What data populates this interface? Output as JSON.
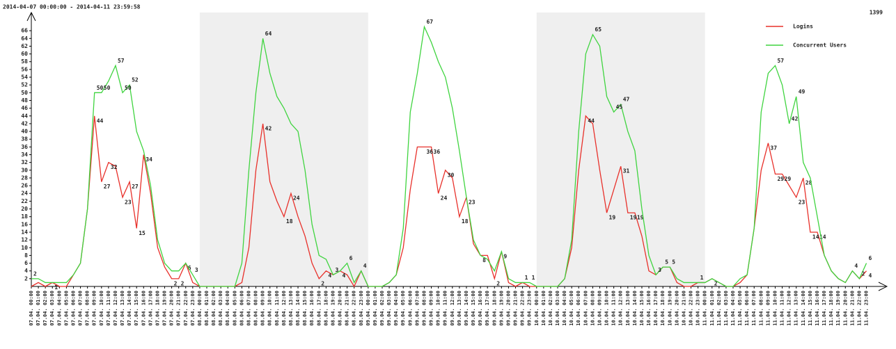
{
  "chart_data": {
    "type": "line",
    "title": "2014-04-07 00:00:00 - 2014-04-11 23:59:58",
    "annotation": "1399",
    "categories": [
      "07.04. 00:00",
      "07.04. 01:00",
      "07.04. 02:00",
      "07.04. 03:00",
      "07.04. 04:00",
      "07.04. 05:00",
      "07.04. 06:00",
      "07.04. 07:00",
      "07.04. 08:00",
      "07.04. 09:00",
      "07.04. 10:00",
      "07.04. 11:00",
      "07.04. 12:00",
      "07.04. 13:00",
      "07.04. 14:00",
      "07.04. 15:00",
      "07.04. 16:00",
      "07.04. 17:00",
      "07.04. 18:00",
      "07.04. 19:00",
      "07.04. 20:00",
      "07.04. 21:00",
      "07.04. 22:00",
      "07.04. 23:00",
      "08.04. 00:00",
      "08.04. 01:00",
      "08.04. 02:00",
      "08.04. 03:00",
      "08.04. 04:00",
      "08.04. 05:00",
      "08.04. 06:00",
      "08.04. 07:00",
      "08.04. 08:00",
      "08.04. 09:00",
      "08.04. 10:00",
      "08.04. 11:00",
      "08.04. 12:00",
      "08.04. 13:00",
      "08.04. 14:00",
      "08.04. 15:00",
      "08.04. 16:00",
      "08.04. 17:00",
      "08.04. 18:00",
      "08.04. 19:00",
      "08.04. 20:00",
      "08.04. 21:00",
      "08.04. 22:00",
      "08.04. 23:00",
      "09.04. 00:00",
      "09.04. 01:00",
      "09.04. 02:00",
      "09.04. 03:00",
      "09.04. 04:00",
      "09.04. 05:00",
      "09.04. 06:00",
      "09.04. 07:00",
      "09.04. 08:00",
      "09.04. 09:00",
      "09.04. 10:00",
      "09.04. 11:00",
      "09.04. 12:00",
      "09.04. 13:00",
      "09.04. 14:00",
      "09.04. 15:00",
      "09.04. 16:00",
      "09.04. 17:00",
      "09.04. 18:00",
      "09.04. 19:00",
      "09.04. 20:00",
      "09.04. 21:00",
      "09.04. 22:00",
      "09.04. 23:00",
      "10.04. 00:00",
      "10.04. 01:00",
      "10.04. 02:00",
      "10.04. 03:00",
      "10.04. 04:00",
      "10.04. 05:00",
      "10.04. 06:00",
      "10.04. 07:00",
      "10.04. 08:00",
      "10.04. 09:00",
      "10.04. 10:00",
      "10.04. 11:00",
      "10.04. 12:00",
      "10.04. 13:00",
      "10.04. 14:00",
      "10.04. 15:00",
      "10.04. 16:00",
      "10.04. 17:00",
      "10.04. 18:00",
      "10.04. 19:00",
      "10.04. 20:00",
      "10.04. 21:00",
      "10.04. 22:00",
      "10.04. 23:00",
      "11.04. 00:00",
      "11.04. 01:00",
      "11.04. 02:00",
      "11.04. 03:00",
      "11.04. 04:00",
      "11.04. 05:00",
      "11.04. 06:00",
      "11.04. 07:00",
      "11.04. 08:00",
      "11.04. 09:00",
      "11.04. 10:00",
      "11.04. 11:00",
      "11.04. 12:00",
      "11.04. 13:00",
      "11.04. 14:00",
      "11.04. 15:00",
      "11.04. 16:00",
      "11.04. 17:00",
      "11.04. 18:00",
      "11.04. 19:00",
      "11.04. 20:00",
      "11.04. 21:00",
      "11.04. 22:00",
      "11.04. 23:00"
    ],
    "series": [
      {
        "name": "Logins",
        "color": "#e8302a",
        "label_color": "#8b0000",
        "values": [
          0,
          1,
          0,
          1,
          0,
          0,
          3,
          6,
          20,
          44,
          27,
          32,
          31,
          23,
          27,
          15,
          34,
          24,
          10,
          5,
          2,
          2,
          6,
          1,
          0,
          0,
          0,
          0,
          0,
          0,
          1,
          10,
          30,
          42,
          27,
          22,
          18,
          24,
          18,
          13,
          6,
          2,
          4,
          3,
          4,
          3,
          0,
          4,
          0,
          0,
          0,
          1,
          3,
          10,
          25,
          36,
          36,
          36,
          24,
          30,
          28,
          18,
          23,
          11,
          8,
          8,
          2,
          9,
          1,
          0,
          1,
          0,
          0,
          0,
          0,
          0,
          2,
          10,
          30,
          44,
          42,
          30,
          19,
          25,
          31,
          19,
          19,
          13,
          4,
          3,
          5,
          5,
          1,
          0,
          0,
          1,
          1,
          2,
          1,
          0,
          0,
          1,
          3,
          15,
          30,
          37,
          29,
          29,
          26,
          23,
          28,
          14,
          14,
          8,
          4,
          2,
          1,
          4,
          2,
          4
        ],
        "value_labels": [
          null,
          null,
          null,
          "1",
          null,
          null,
          null,
          null,
          null,
          "44",
          "27",
          "32",
          null,
          "23",
          "27",
          "15",
          "34",
          null,
          null,
          null,
          "2",
          "2",
          "6",
          null,
          null,
          null,
          null,
          null,
          null,
          null,
          null,
          null,
          null,
          "42",
          null,
          null,
          "18",
          "24",
          null,
          null,
          null,
          "2",
          "4",
          null,
          "4",
          null,
          null,
          null,
          null,
          null,
          null,
          null,
          null,
          null,
          null,
          null,
          "36",
          "36",
          "24",
          "30",
          null,
          "18",
          "23",
          null,
          "8",
          null,
          "2",
          "9",
          null,
          null,
          null,
          null,
          null,
          null,
          null,
          null,
          null,
          null,
          null,
          "44",
          null,
          null,
          "19",
          null,
          "31",
          "19",
          "19",
          null,
          null,
          null,
          null,
          null,
          null,
          null,
          null,
          null,
          null,
          "2",
          null,
          null,
          null,
          null,
          null,
          null,
          null,
          "37",
          "29",
          "29",
          null,
          "23",
          "28",
          "14",
          "14",
          null,
          null,
          null,
          null,
          null,
          null,
          "4"
        ]
      },
      {
        "name": "Concurrent Users",
        "color": "#3fd43f",
        "label_color": "#1f6e1f",
        "values": [
          2,
          2,
          1,
          1,
          1,
          1,
          3,
          6,
          20,
          50,
          50,
          53,
          57,
          50,
          52,
          40,
          35,
          26,
          12,
          6,
          4,
          4,
          6,
          3,
          0,
          0,
          0,
          0,
          0,
          0,
          6,
          30,
          50,
          64,
          55,
          49,
          46,
          42,
          40,
          30,
          16,
          8,
          7,
          3,
          4,
          6,
          1,
          4,
          0,
          0,
          0,
          1,
          3,
          15,
          45,
          55,
          67,
          63,
          58,
          54,
          46,
          35,
          23,
          12,
          8,
          7,
          4,
          9,
          2,
          1,
          1,
          1,
          0,
          0,
          0,
          0,
          2,
          12,
          40,
          60,
          65,
          62,
          49,
          45,
          47,
          40,
          35,
          20,
          8,
          3,
          5,
          5,
          2,
          1,
          1,
          1,
          1,
          2,
          1,
          0,
          0,
          2,
          3,
          15,
          45,
          55,
          57,
          52,
          42,
          49,
          32,
          28,
          18,
          8,
          4,
          2,
          1,
          4,
          2,
          6
        ],
        "value_labels": [
          "2",
          null,
          null,
          null,
          null,
          null,
          null,
          null,
          null,
          "50",
          "50",
          null,
          "57",
          "50",
          "52",
          null,
          null,
          null,
          null,
          null,
          null,
          null,
          null,
          "3",
          null,
          null,
          null,
          null,
          null,
          null,
          null,
          null,
          null,
          "64",
          null,
          null,
          null,
          null,
          null,
          null,
          null,
          null,
          null,
          "3",
          null,
          "6",
          null,
          "4",
          null,
          null,
          null,
          null,
          null,
          null,
          null,
          null,
          "67",
          null,
          null,
          null,
          null,
          null,
          null,
          null,
          null,
          null,
          null,
          null,
          null,
          null,
          "1",
          "1",
          null,
          null,
          null,
          null,
          null,
          null,
          null,
          null,
          "65",
          null,
          null,
          "45",
          "47",
          null,
          null,
          null,
          null,
          "3",
          "5",
          "5",
          null,
          null,
          null,
          "1",
          null,
          null,
          null,
          null,
          null,
          null,
          null,
          null,
          null,
          null,
          "57",
          null,
          "42",
          "49",
          null,
          null,
          null,
          null,
          null,
          null,
          null,
          "4",
          "2",
          "6"
        ]
      }
    ],
    "ylim": [
      0,
      68
    ],
    "yticks": [
      2,
      4,
      6,
      8,
      10,
      12,
      14,
      16,
      18,
      20,
      22,
      24,
      26,
      28,
      30,
      32,
      34,
      36,
      38,
      40,
      42,
      44,
      46,
      48,
      50,
      52,
      54,
      56,
      58,
      60,
      62,
      64,
      66
    ],
    "legend": "top-right",
    "grid": false
  }
}
